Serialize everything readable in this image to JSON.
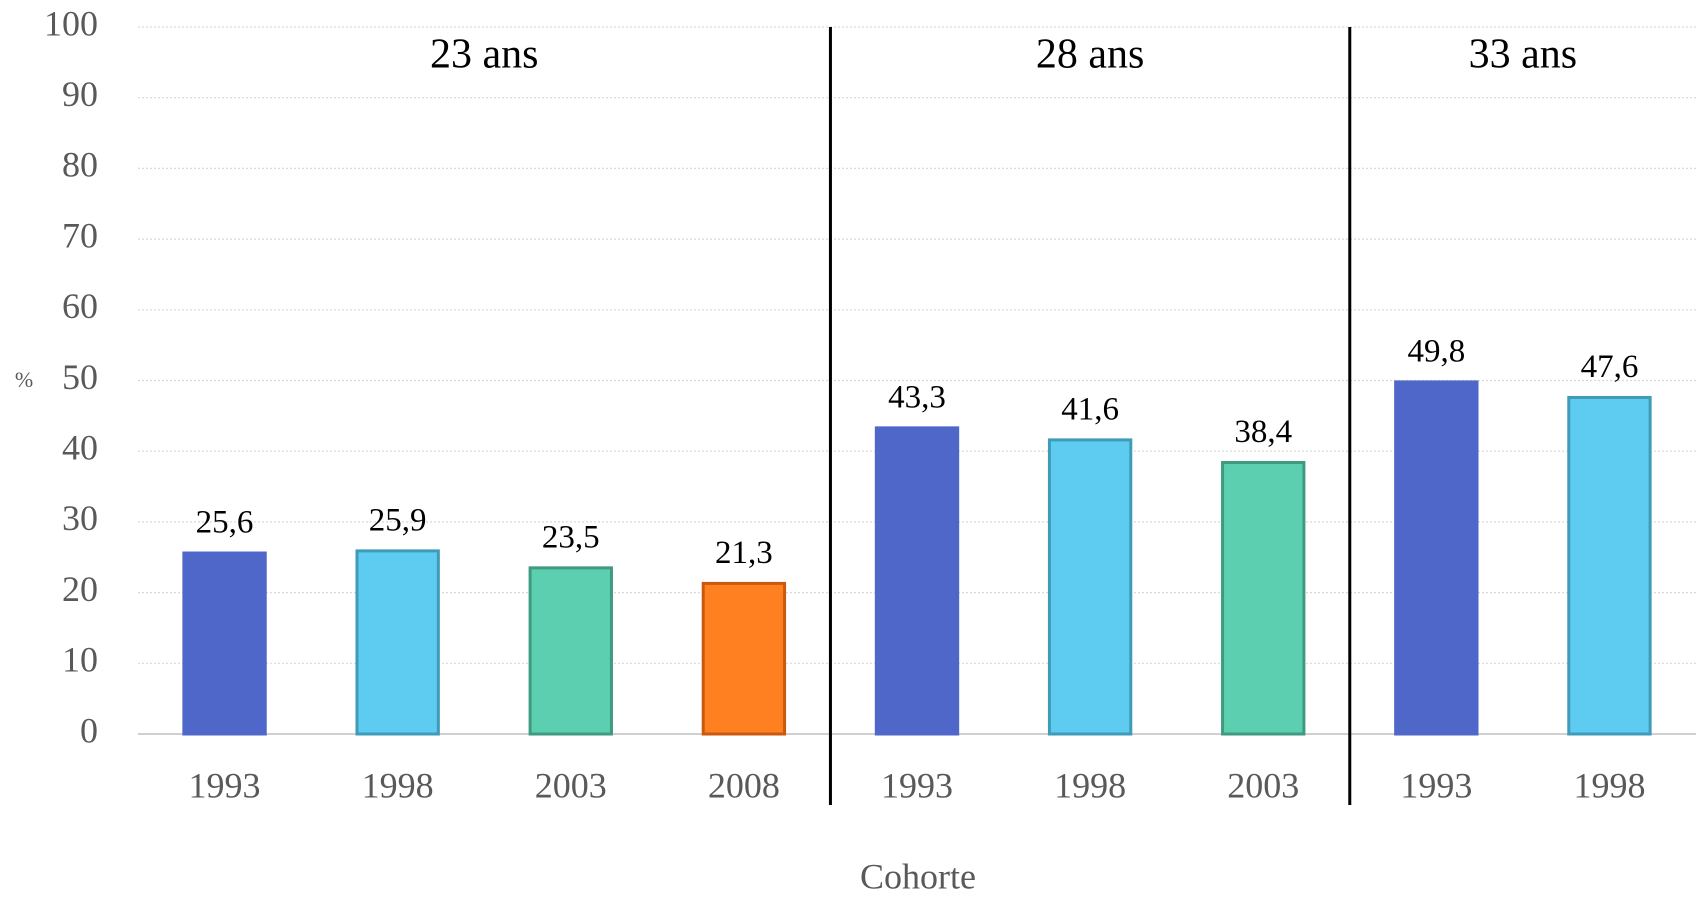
{
  "chart_data": {
    "type": "bar",
    "ylabel": "%",
    "xlabel": "Cohorte",
    "ylim": [
      0,
      100
    ],
    "yticks": [
      0,
      10,
      20,
      30,
      40,
      50,
      60,
      70,
      80,
      90,
      100
    ],
    "grid": true,
    "groups": [
      {
        "name": "23 ans",
        "categories": [
          "1993",
          "1998",
          "2003",
          "2008"
        ],
        "values": [
          25.6,
          25.9,
          23.5,
          21.3
        ],
        "value_labels": [
          "25,6",
          "25,9",
          "23,5",
          "21,3"
        ],
        "colors": [
          "#4f67c8",
          "#5ecbf0",
          "#5ccfb0",
          "#ff8020"
        ],
        "edgecolors": [
          "#4f67c8",
          "#3f9bb8",
          "#3f9a80",
          "#c85a10"
        ]
      },
      {
        "name": "28 ans",
        "categories": [
          "1993",
          "1998",
          "2003"
        ],
        "values": [
          43.3,
          41.6,
          38.4
        ],
        "value_labels": [
          "43,3",
          "41,6",
          "38,4"
        ],
        "colors": [
          "#4f67c8",
          "#5ecbf0",
          "#5ccfb0"
        ],
        "edgecolors": [
          "#4f67c8",
          "#3f9bb8",
          "#3f9a80"
        ]
      },
      {
        "name": "33 ans",
        "categories": [
          "1993",
          "1998"
        ],
        "values": [
          49.8,
          47.6
        ],
        "value_labels": [
          "49,8",
          "47,6"
        ],
        "colors": [
          "#4f67c8",
          "#5ecbf0"
        ],
        "edgecolors": [
          "#4f67c8",
          "#3f9bb8"
        ]
      }
    ]
  }
}
